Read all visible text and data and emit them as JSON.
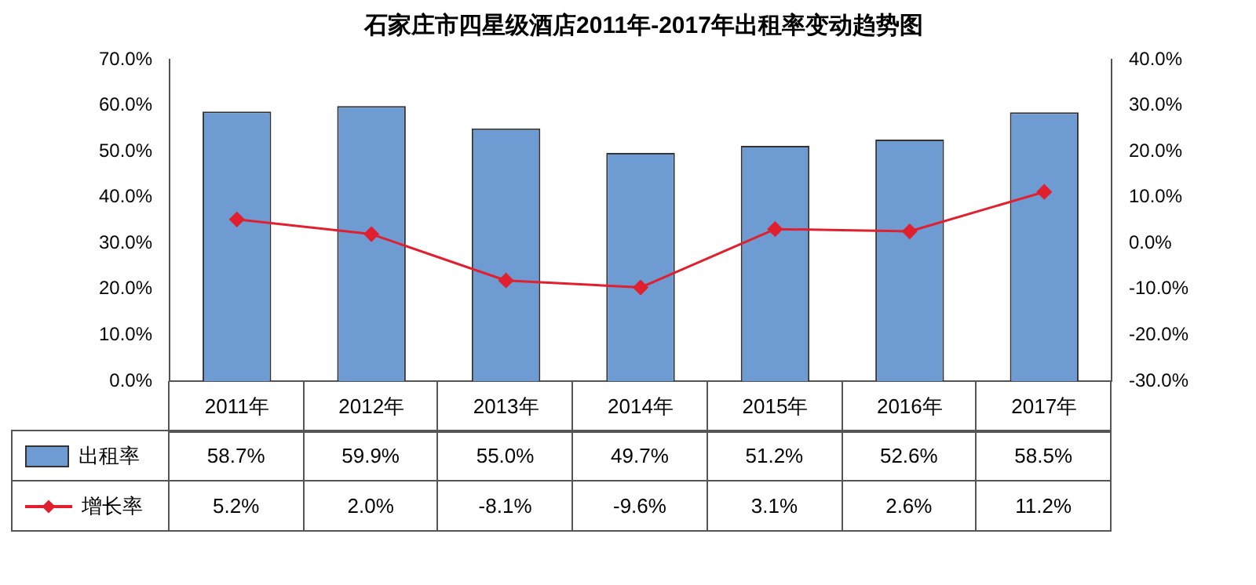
{
  "chart_data": {
    "type": "bar",
    "title": "石家庄市四星级酒店2011年-2017年出租率变动趋势图",
    "categories": [
      "2011年",
      "2012年",
      "2013年",
      "2014年",
      "2015年",
      "2016年",
      "2017年"
    ],
    "series": [
      {
        "name": "出租率",
        "color": "#6f9bd3",
        "values": [
          58.7,
          59.9,
          55.0,
          49.7,
          51.2,
          52.6,
          58.5
        ],
        "value_labels": [
          "58.7%",
          "59.9%",
          "55.0%",
          "49.7%",
          "51.2%",
          "52.6%",
          "58.5%"
        ]
      },
      {
        "name": "增长率",
        "type": "line",
        "axis": "y2",
        "color": "#e0202e",
        "marker": "diamond",
        "values": [
          5.2,
          2.0,
          -8.1,
          -9.6,
          3.1,
          2.6,
          11.2
        ],
        "value_labels": [
          "5.2%",
          "2.0%",
          "-8.1%",
          "-9.6%",
          "3.1%",
          "2.6%",
          "11.2%"
        ]
      }
    ],
    "ylim": [
      0,
      70
    ],
    "yticks": [
      {
        "value": 0,
        "label": "0.0%"
      },
      {
        "value": 10,
        "label": "10.0%"
      },
      {
        "value": 20,
        "label": "20.0%"
      },
      {
        "value": 30,
        "label": "30.0%"
      },
      {
        "value": 40,
        "label": "40.0%"
      },
      {
        "value": 50,
        "label": "50.0%"
      },
      {
        "value": 60,
        "label": "60.0%"
      },
      {
        "value": 70,
        "label": "70.0%"
      }
    ],
    "y2lim": [
      -30,
      40
    ],
    "y2ticks": [
      {
        "value": -30,
        "label": "-30.0%"
      },
      {
        "value": -20,
        "label": "-20.0%"
      },
      {
        "value": -10,
        "label": "-10.0%"
      },
      {
        "value": 0,
        "label": "0.0%"
      },
      {
        "value": 10,
        "label": "10.0%"
      },
      {
        "value": 20,
        "label": "20.0%"
      },
      {
        "value": 30,
        "label": "30.0%"
      },
      {
        "value": 40,
        "label": "40.0%"
      }
    ],
    "grid": false,
    "legend": "bottom left"
  }
}
